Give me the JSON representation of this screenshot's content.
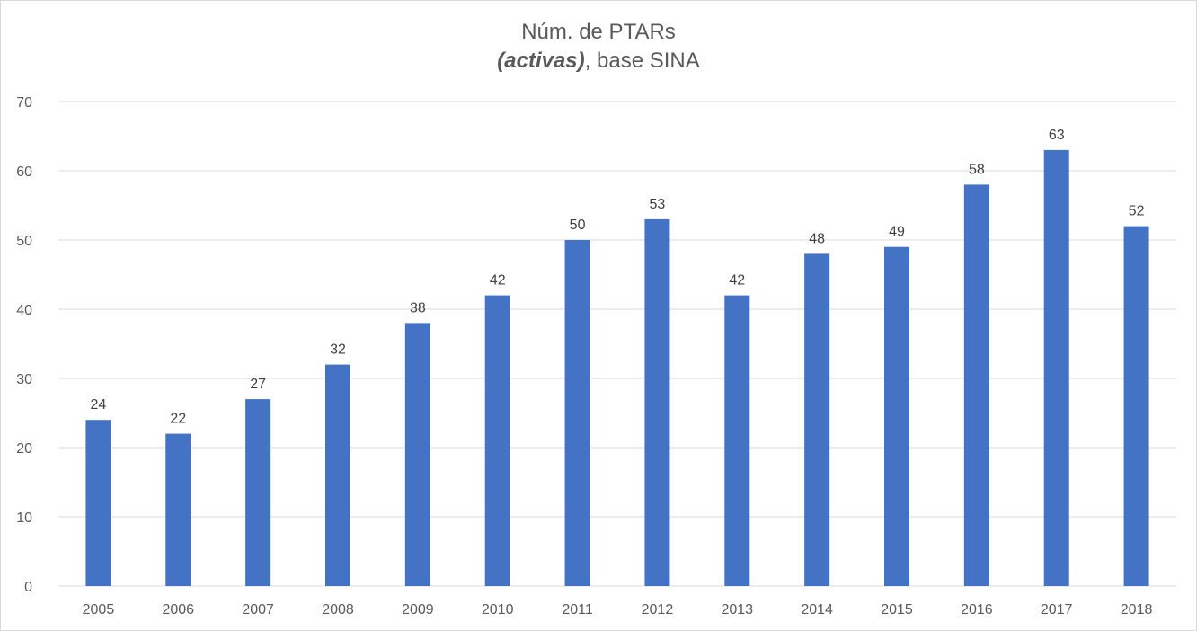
{
  "chart_data": {
    "type": "bar",
    "title_main": "Núm. de PTARs",
    "title_sub_em": "(activas)",
    "title_sub_rest": ", base SINA",
    "xlabel": "",
    "ylabel": "",
    "categories": [
      "2005",
      "2006",
      "2007",
      "2008",
      "2009",
      "2010",
      "2011",
      "2012",
      "2013",
      "2014",
      "2015",
      "2016",
      "2017",
      "2018"
    ],
    "values": [
      24,
      22,
      27,
      32,
      38,
      42,
      50,
      53,
      42,
      48,
      49,
      58,
      63,
      52
    ],
    "ylim": [
      0,
      70
    ],
    "yticks": [
      0,
      10,
      20,
      30,
      40,
      50,
      60,
      70
    ],
    "grid": true,
    "legend": "none",
    "bar_color": "#4472c4",
    "grid_color": "#d9d9d9"
  }
}
